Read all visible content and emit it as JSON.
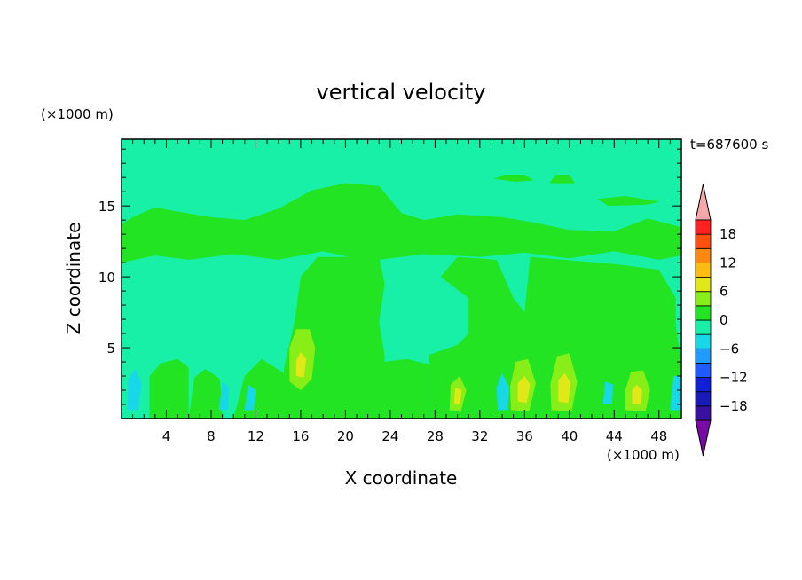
{
  "chart_data": {
    "type": "heatmap",
    "title": "vertical velocity",
    "xlabel": "X coordinate",
    "ylabel": "Z coordinate",
    "x_unit": "(×1000 m)",
    "y_unit": "(×1000 m)",
    "time_label": "t=687600 s",
    "xlim": [
      0,
      50
    ],
    "ylim": [
      0,
      19.7
    ],
    "x_ticks": [
      4,
      8,
      12,
      16,
      20,
      24,
      28,
      32,
      36,
      40,
      44,
      48
    ],
    "y_ticks": [
      5,
      10,
      15
    ],
    "background_value": -1,
    "colorbar": {
      "ticks": [
        18,
        12,
        6,
        0,
        -6,
        -12,
        -18
      ],
      "levels": [
        -21,
        -18,
        -15,
        -12,
        -9,
        -6,
        -3,
        0,
        3,
        6,
        9,
        12,
        15,
        18,
        21
      ],
      "colors": [
        "#7a0aa8",
        "#3a10a0",
        "#1a1ab8",
        "#1020d8",
        "#1e5cff",
        "#1e9cff",
        "#18d8e8",
        "#18f0a8",
        "#22e422",
        "#88ee18",
        "#e0e818",
        "#ffbc10",
        "#ff8810",
        "#ff5010",
        "#ff2020",
        "#f4a8a8"
      ]
    },
    "regions": [
      {
        "name": "upper-band",
        "value": 1,
        "poly": [
          [
            0,
            11
          ],
          [
            3,
            11.5
          ],
          [
            6,
            11.2
          ],
          [
            10,
            11.6
          ],
          [
            14,
            11.2
          ],
          [
            18,
            11.8
          ],
          [
            22,
            11.1
          ],
          [
            27,
            11.6
          ],
          [
            32,
            11.4
          ],
          [
            36,
            11.7
          ],
          [
            40,
            11.3
          ],
          [
            44,
            11.8
          ],
          [
            48,
            11.2
          ],
          [
            50,
            11.5
          ],
          [
            50,
            13.5
          ],
          [
            47,
            14.1
          ],
          [
            44,
            13.2
          ],
          [
            40,
            13.3
          ],
          [
            37,
            13.8
          ],
          [
            34,
            14.2
          ],
          [
            30,
            14.4
          ],
          [
            27,
            14.0
          ],
          [
            25,
            14.5
          ],
          [
            23,
            16.4
          ],
          [
            20,
            16.6
          ],
          [
            17,
            16.1
          ],
          [
            14,
            14.8
          ],
          [
            11,
            14.0
          ],
          [
            8,
            14.2
          ],
          [
            5,
            14.6
          ],
          [
            3,
            14.9
          ],
          [
            1,
            14.2
          ],
          [
            0,
            13.7
          ]
        ]
      },
      {
        "name": "top-patch-a",
        "value": 1,
        "poly": [
          [
            33.3,
            16.9
          ],
          [
            35.2,
            16.7
          ],
          [
            36.8,
            16.8
          ],
          [
            36.0,
            17.2
          ],
          [
            34.2,
            17.2
          ]
        ]
      },
      {
        "name": "top-patch-b",
        "value": 1,
        "poly": [
          [
            38.2,
            16.6
          ],
          [
            40.5,
            16.6
          ],
          [
            40.0,
            17.2
          ],
          [
            38.8,
            17.2
          ]
        ]
      },
      {
        "name": "top-patch-c",
        "value": 1,
        "poly": [
          [
            42.5,
            15.5
          ],
          [
            45.0,
            15.7
          ],
          [
            48.0,
            15.3
          ],
          [
            47.0,
            15.1
          ],
          [
            43.5,
            15.0
          ]
        ]
      },
      {
        "name": "updraft-left",
        "value": 1,
        "poly": [
          [
            14.5,
            0
          ],
          [
            23.5,
            0
          ],
          [
            23.5,
            4.5
          ],
          [
            23.0,
            6.8
          ],
          [
            23.5,
            9.5
          ],
          [
            23.0,
            11.4
          ],
          [
            17.5,
            11.4
          ],
          [
            16.0,
            10.0
          ],
          [
            15.5,
            7.0
          ],
          [
            14.5,
            3.5
          ]
        ]
      },
      {
        "name": "updraft-right",
        "value": 1,
        "poly": [
          [
            27.5,
            0
          ],
          [
            50,
            0
          ],
          [
            50,
            4.0
          ],
          [
            49.5,
            6.5
          ],
          [
            49.5,
            8.5
          ],
          [
            48.0,
            10.5
          ],
          [
            44.0,
            10.9
          ],
          [
            36.5,
            11.4
          ],
          [
            36.0,
            7.5
          ],
          [
            35.0,
            8.5
          ],
          [
            33.5,
            11.2
          ],
          [
            30.0,
            11.4
          ],
          [
            28.5,
            10.0
          ],
          [
            31.0,
            8.5
          ],
          [
            31.0,
            6.0
          ],
          [
            30.0,
            5.2
          ],
          [
            27.5,
            4.5
          ]
        ]
      },
      {
        "name": "strip-24-28",
        "value": 1,
        "poly": [
          [
            23.5,
            0
          ],
          [
            27.5,
            0
          ],
          [
            27.5,
            3.8
          ],
          [
            25.5,
            4.2
          ],
          [
            23.5,
            4.0
          ]
        ]
      },
      {
        "name": "low-left-a",
        "value": 1,
        "poly": [
          [
            2.5,
            0
          ],
          [
            6.0,
            0
          ],
          [
            6.0,
            3.6
          ],
          [
            5.0,
            4.2
          ],
          [
            3.5,
            3.9
          ],
          [
            2.5,
            3.0
          ]
        ]
      },
      {
        "name": "low-left-b",
        "value": 1,
        "poly": [
          [
            6.0,
            0
          ],
          [
            9.0,
            0
          ],
          [
            8.8,
            2.8
          ],
          [
            7.5,
            3.5
          ],
          [
            6.5,
            2.9
          ]
        ]
      },
      {
        "name": "low-left-c",
        "value": 1,
        "poly": [
          [
            10.0,
            0
          ],
          [
            14.5,
            0
          ],
          [
            14.5,
            3.2
          ],
          [
            12.5,
            4.2
          ],
          [
            11.0,
            3.0
          ]
        ]
      },
      {
        "name": "cell-30",
        "value": 4,
        "poly": [
          [
            29.3,
            0.6
          ],
          [
            30.3,
            0.5
          ],
          [
            30.8,
            2.0
          ],
          [
            30.2,
            3.0
          ],
          [
            29.4,
            2.4
          ]
        ]
      },
      {
        "name": "cell-36",
        "value": 4,
        "poly": [
          [
            34.8,
            0.6
          ],
          [
            36.4,
            0.5
          ],
          [
            37.0,
            2.5
          ],
          [
            36.3,
            4.2
          ],
          [
            35.2,
            4.0
          ],
          [
            34.7,
            2.2
          ]
        ]
      },
      {
        "name": "cell-39",
        "value": 4,
        "poly": [
          [
            38.4,
            0.6
          ],
          [
            40.2,
            0.5
          ],
          [
            40.7,
            2.6
          ],
          [
            40.0,
            4.6
          ],
          [
            38.9,
            4.4
          ],
          [
            38.3,
            2.4
          ]
        ]
      },
      {
        "name": "cell-46",
        "value": 4,
        "poly": [
          [
            45.0,
            0.6
          ],
          [
            46.8,
            0.5
          ],
          [
            47.2,
            2.0
          ],
          [
            46.6,
            3.4
          ],
          [
            45.5,
            3.3
          ],
          [
            45.0,
            2.0
          ]
        ]
      },
      {
        "name": "cell-16",
        "value": 4,
        "poly": [
          [
            15.0,
            2.6
          ],
          [
            16.0,
            2.0
          ],
          [
            17.0,
            2.8
          ],
          [
            17.3,
            5.0
          ],
          [
            16.8,
            6.3
          ],
          [
            15.6,
            6.3
          ],
          [
            15.0,
            5.0
          ]
        ]
      },
      {
        "name": "core-30",
        "value": 7,
        "poly": [
          [
            29.7,
            1.0
          ],
          [
            30.2,
            1.0
          ],
          [
            30.4,
            2.0
          ],
          [
            29.8,
            2.2
          ]
        ]
      },
      {
        "name": "core-36",
        "value": 7,
        "poly": [
          [
            35.4,
            1.2
          ],
          [
            36.2,
            1.1
          ],
          [
            36.5,
            2.4
          ],
          [
            36.0,
            3.0
          ],
          [
            35.4,
            2.5
          ]
        ]
      },
      {
        "name": "core-39",
        "value": 7,
        "poly": [
          [
            39.0,
            1.2
          ],
          [
            39.9,
            1.1
          ],
          [
            40.1,
            2.5
          ],
          [
            39.6,
            3.2
          ],
          [
            39.0,
            2.7
          ]
        ]
      },
      {
        "name": "core-46",
        "value": 7,
        "poly": [
          [
            45.6,
            1.0
          ],
          [
            46.4,
            1.0
          ],
          [
            46.5,
            2.0
          ],
          [
            46.0,
            2.4
          ],
          [
            45.6,
            2.0
          ]
        ]
      },
      {
        "name": "core-16",
        "value": 7,
        "poly": [
          [
            15.6,
            3.0
          ],
          [
            16.3,
            2.9
          ],
          [
            16.5,
            4.2
          ],
          [
            16.0,
            4.7
          ],
          [
            15.6,
            4.1
          ]
        ]
      },
      {
        "name": "cyan-1",
        "value": -4,
        "poly": [
          [
            0.5,
            0.6
          ],
          [
            1.5,
            0.6
          ],
          [
            1.8,
            2.5
          ],
          [
            1.2,
            3.5
          ],
          [
            0.6,
            2.8
          ]
        ]
      },
      {
        "name": "cyan-2",
        "value": -4,
        "poly": [
          [
            8.7,
            0.6
          ],
          [
            9.5,
            0.6
          ],
          [
            9.6,
            2.2
          ],
          [
            9.0,
            2.6
          ]
        ]
      },
      {
        "name": "cyan-3",
        "value": -4,
        "poly": [
          [
            11.0,
            0.6
          ],
          [
            11.8,
            0.6
          ],
          [
            12.0,
            2.0
          ],
          [
            11.3,
            2.4
          ]
        ]
      },
      {
        "name": "cyan-4",
        "value": -4,
        "poly": [
          [
            33.6,
            0.6
          ],
          [
            34.5,
            0.6
          ],
          [
            34.6,
            2.2
          ],
          [
            34.0,
            3.2
          ],
          [
            33.5,
            2.2
          ]
        ]
      },
      {
        "name": "cyan-5",
        "value": -4,
        "poly": [
          [
            43.0,
            1.0
          ],
          [
            43.8,
            1.0
          ],
          [
            43.9,
            2.4
          ],
          [
            43.2,
            2.6
          ]
        ]
      },
      {
        "name": "cyan-6",
        "value": -4,
        "poly": [
          [
            49.0,
            0.6
          ],
          [
            50,
            0.6
          ],
          [
            50,
            3.0
          ],
          [
            49.3,
            3.0
          ]
        ]
      }
    ]
  }
}
